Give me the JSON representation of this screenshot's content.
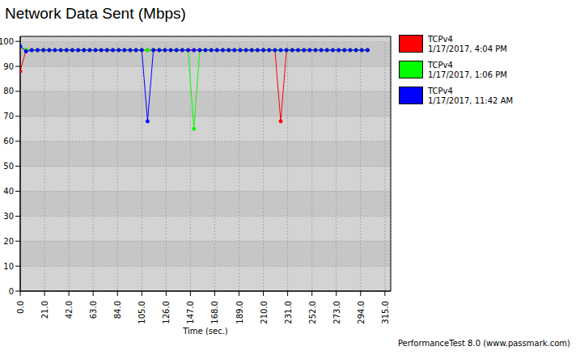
{
  "chart_data": {
    "type": "line",
    "title": "Network Data Sent (Mbps)",
    "x_label": "Time (sec.)",
    "footer": "PerformanceTest 8.0 (www.passmark.com)",
    "x": [
      0,
      5,
      10,
      15,
      20,
      25,
      30,
      35,
      40,
      45,
      50,
      55,
      60,
      65,
      70,
      75,
      80,
      85,
      90,
      95,
      100,
      105,
      110,
      115,
      120,
      125,
      130,
      135,
      140,
      145,
      150,
      155,
      160,
      165,
      170,
      175,
      180,
      185,
      190,
      195,
      200,
      205,
      210,
      215,
      220,
      225,
      230,
      235,
      240,
      245,
      250,
      255,
      260,
      265,
      270,
      275,
      280,
      285,
      290,
      295,
      300
    ],
    "series": [
      {
        "name": "TCPv4",
        "date": "1/17/2017, 4:04 PM",
        "color": "#ff0000",
        "values": [
          88,
          96.5,
          96.5,
          96.5,
          96.5,
          96.5,
          96.5,
          96.5,
          96.5,
          96.5,
          96.5,
          96.5,
          96.5,
          96.5,
          96.5,
          96.5,
          96.5,
          96.5,
          96.5,
          96.5,
          96.5,
          96.5,
          96.5,
          96.5,
          96.5,
          96.5,
          96.5,
          96.5,
          96.5,
          96.5,
          96.5,
          96.5,
          96.5,
          96.5,
          96.5,
          96.5,
          96.5,
          96.5,
          96.5,
          96.5,
          96.5,
          96.5,
          96.5,
          96.5,
          96.5,
          68,
          96.5,
          96.5,
          96.5,
          96.5,
          96.5,
          96.5,
          96.5,
          96.5,
          96.5,
          96.5,
          96.5,
          96.5,
          96.5,
          96.5,
          96.5
        ]
      },
      {
        "name": "TCPv4",
        "date": "1/17/2017, 1:06 PM",
        "color": "#00ff00",
        "values": [
          98,
          96.5,
          96.5,
          96.5,
          96.5,
          96.5,
          96.5,
          96.5,
          96.5,
          96.5,
          96.5,
          96.5,
          96.5,
          96.5,
          96.5,
          96.5,
          96.5,
          96.5,
          96.5,
          96.5,
          96.5,
          96.5,
          96.5,
          96.5,
          96.5,
          96.5,
          96.5,
          96.5,
          96.5,
          96.5,
          65,
          96.5,
          96.5,
          96.5,
          96.5,
          96.5,
          96.5,
          96.5,
          96.5,
          96.5,
          96.5,
          96.5,
          96.5,
          96.5,
          96.5,
          96.5,
          96.5,
          96.5,
          96.5,
          96.5,
          96.5,
          96.5,
          96.5,
          96.5,
          96.5,
          96.5,
          96.5,
          96.5,
          96.5,
          96.5,
          96.5
        ]
      },
      {
        "name": "TCPv4",
        "date": "1/17/2017, 11:42 AM",
        "color": "#0000ff",
        "values": [
          98,
          96,
          96.5,
          96.5,
          96.5,
          96.5,
          96.5,
          96.5,
          96.5,
          96.5,
          96.5,
          96.5,
          96.5,
          96.5,
          96.5,
          96.5,
          96.5,
          96.5,
          96.5,
          96.5,
          96.5,
          96.5,
          68,
          96.5,
          96.5,
          96.5,
          96.5,
          96.5,
          96.5,
          96.5,
          96.5,
          96.5,
          96.5,
          96.5,
          96.5,
          96.5,
          96.5,
          96.5,
          96.5,
          96.5,
          96.5,
          96.5,
          96.5,
          96.5,
          96.5,
          96.5,
          96.5,
          96.5,
          96.5,
          96.5,
          96.5,
          96.5,
          96.5,
          96.5,
          96.5,
          96.5,
          96.5,
          96.5,
          96.5,
          96.5,
          96.5
        ]
      }
    ],
    "xlim": [
      0,
      320
    ],
    "xticks": [
      {
        "value": 0,
        "label": "0.0"
      },
      {
        "value": 21,
        "label": "21.0"
      },
      {
        "value": 42,
        "label": "42.0"
      },
      {
        "value": 63,
        "label": "63.0"
      },
      {
        "value": 84,
        "label": "84.0"
      },
      {
        "value": 105,
        "label": "105.0"
      },
      {
        "value": 126,
        "label": "126.0"
      },
      {
        "value": 147,
        "label": "147.0"
      },
      {
        "value": 168,
        "label": "168.0"
      },
      {
        "value": 189,
        "label": "189.0"
      },
      {
        "value": 210,
        "label": "210.0"
      },
      {
        "value": 231,
        "label": "231.0"
      },
      {
        "value": 252,
        "label": "252.0"
      },
      {
        "value": 273,
        "label": "273.0"
      },
      {
        "value": 294,
        "label": "294.0"
      },
      {
        "value": 315,
        "label": "315.0"
      }
    ],
    "ylim": [
      0,
      102
    ],
    "yticks": [
      0,
      10,
      20,
      30,
      40,
      50,
      60,
      70,
      80,
      90,
      100
    ],
    "grid": true,
    "legend": "right",
    "marker": "circle"
  }
}
